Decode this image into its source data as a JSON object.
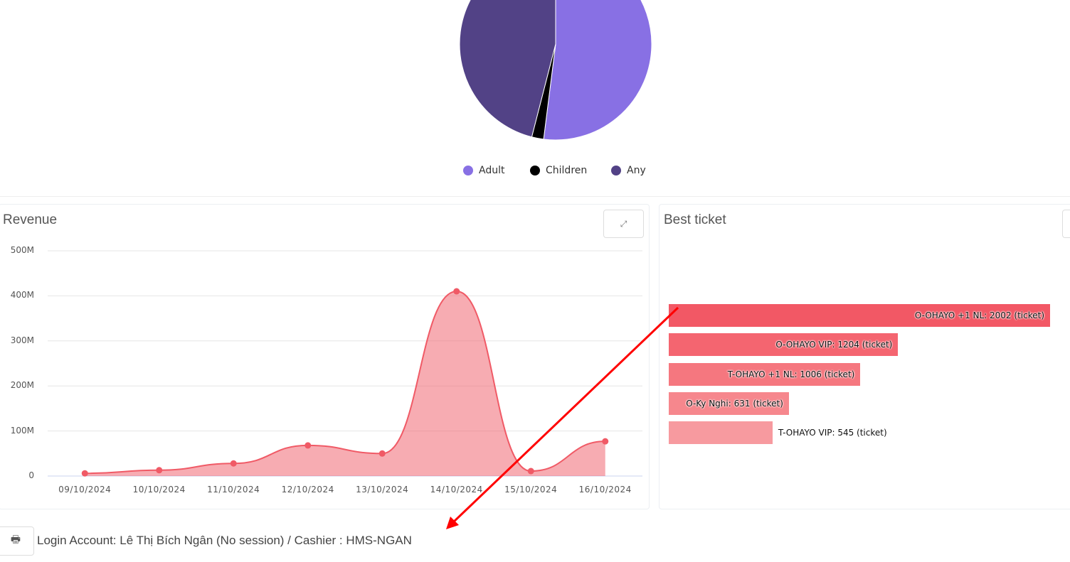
{
  "pie": {
    "legend": [
      {
        "label": "Adult",
        "color": "#8870e4"
      },
      {
        "label": "Children",
        "color": "#000000"
      },
      {
        "label": "Any",
        "color": "#524286"
      }
    ],
    "values": [
      52,
      2,
      46
    ]
  },
  "revenue": {
    "title": "Revenue",
    "expand_icon": "expand-icon",
    "chart_data": {
      "type": "area",
      "x": [
        "09/10/2024",
        "10/10/2024",
        "11/10/2024",
        "12/10/2024",
        "13/10/2024",
        "14/10/2024",
        "15/10/2024",
        "16/10/2024"
      ],
      "values": [
        6,
        13,
        28,
        68,
        50,
        410,
        11,
        77
      ],
      "unit": "M",
      "ylim": [
        0,
        500
      ],
      "yticks": [
        "500M",
        "400M",
        "300M",
        "200M",
        "100M",
        "0"
      ],
      "grid": true,
      "color": "#f05a66"
    }
  },
  "best_ticket": {
    "title": "Best ticket",
    "chart_data": {
      "type": "bar",
      "orientation": "horizontal",
      "categories": [
        "O-OHAYO +1 NL",
        "O-OHAYO VIP",
        "T-OHAYO +1 NL",
        "O-Ky Nghi",
        "T-OHAYO VIP"
      ],
      "values": [
        2002,
        1204,
        1006,
        631,
        545
      ],
      "labels": [
        "O-OHAYO +1 NL: 2002 (ticket)",
        "O-OHAYO VIP: 1204 (ticket)",
        "T-OHAYO +1 NL: 1006 (ticket)",
        "O-Ky Nghi: 631 (ticket)",
        "T-OHAYO VIP: 545 (ticket)"
      ],
      "colors": [
        "#f25865",
        "#f46570",
        "#f5777f",
        "#f6878d",
        "#f79a9f"
      ]
    }
  },
  "footer": {
    "print_icon": "printer-icon",
    "text": "Login Account: Lê Thị Bích Ngân (No session) / Cashier : HMS-NGAN"
  }
}
